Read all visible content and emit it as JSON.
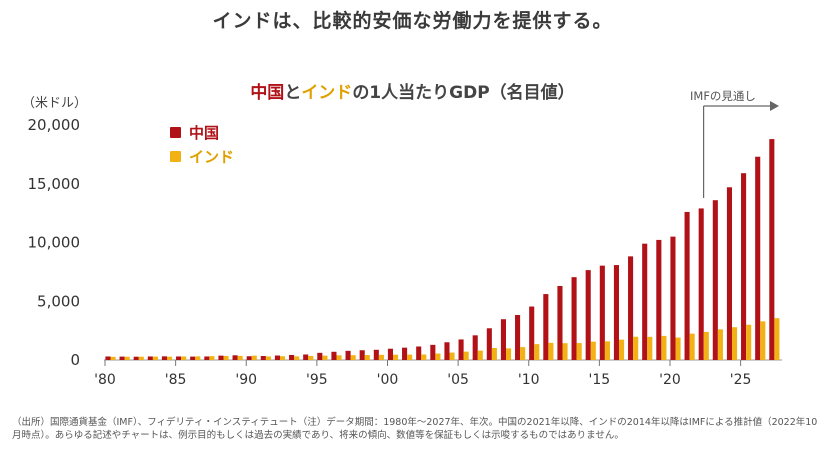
{
  "headline": "インドは、比較的安価な労働力を提供する。",
  "chart_data": {
    "type": "bar",
    "title_parts": {
      "china": "中国",
      "connector": "と",
      "india": "インド",
      "rest": "の1人当たりGDP（名目値）"
    },
    "ylabel": "（米ドル）",
    "ylim": [
      0,
      20000
    ],
    "yticks": [
      "20,000",
      "15,000",
      "10,000",
      "5,000",
      "0"
    ],
    "ytick_values": [
      20000,
      15000,
      10000,
      5000,
      0
    ],
    "xticks": [
      "'80",
      "'85",
      "'90",
      "'95",
      "'00",
      "'05",
      "'10",
      "'15",
      "'20",
      "'25"
    ],
    "xtick_years": [
      1980,
      1985,
      1990,
      1995,
      2000,
      2005,
      2010,
      2015,
      2020,
      2025
    ],
    "years": [
      1980,
      1981,
      1982,
      1983,
      1984,
      1985,
      1986,
      1987,
      1988,
      1989,
      1990,
      1991,
      1992,
      1993,
      1994,
      1995,
      1996,
      1997,
      1998,
      1999,
      2000,
      2001,
      2002,
      2003,
      2004,
      2005,
      2006,
      2007,
      2008,
      2009,
      2010,
      2011,
      2012,
      2013,
      2014,
      2015,
      2016,
      2017,
      2018,
      2019,
      2020,
      2021,
      2022,
      2023,
      2024,
      2025,
      2026,
      2027
    ],
    "series": [
      {
        "name": "中国",
        "color": "#b01217",
        "values": [
          300,
          290,
          280,
          300,
          310,
          300,
          290,
          300,
          370,
          400,
          320,
          340,
          380,
          430,
          470,
          610,
          700,
          780,
          830,
          870,
          960,
          1050,
          1150,
          1290,
          1510,
          1750,
          2100,
          2700,
          3470,
          3830,
          4550,
          5610,
          6300,
          7050,
          7650,
          8030,
          8080,
          8820,
          9900,
          10220,
          10500,
          12600,
          12900,
          13600,
          14700,
          15900,
          17300,
          18800
        ]
      },
      {
        "name": "インド",
        "color": "#f2b216",
        "values": [
          270,
          280,
          280,
          290,
          280,
          300,
          310,
          330,
          340,
          350,
          370,
          300,
          320,
          310,
          340,
          370,
          400,
          410,
          420,
          440,
          450,
          460,
          470,
          550,
          630,
          710,
          800,
          1020,
          990,
          1100,
          1350,
          1460,
          1430,
          1440,
          1560,
          1590,
          1730,
          1980,
          1970,
          2050,
          1910,
          2240,
          2390,
          2610,
          2790,
          3000,
          3290,
          3560
        ]
      }
    ],
    "projection_label": "IMFの見通し"
  },
  "footnote": "（出所）国際通貨基金（IMF）、フィデリティ・インスティテュート（注）データ期間：1980年〜2027年、年次。中国の2021年以降、インドの2014年以降はIMFによる推計値（2022年10月時点）。あらゆる記述やチャートは、例示目的もしくは過去の実績であり、将来の傾向、数値等を保証もしくは示唆するものではありません。"
}
